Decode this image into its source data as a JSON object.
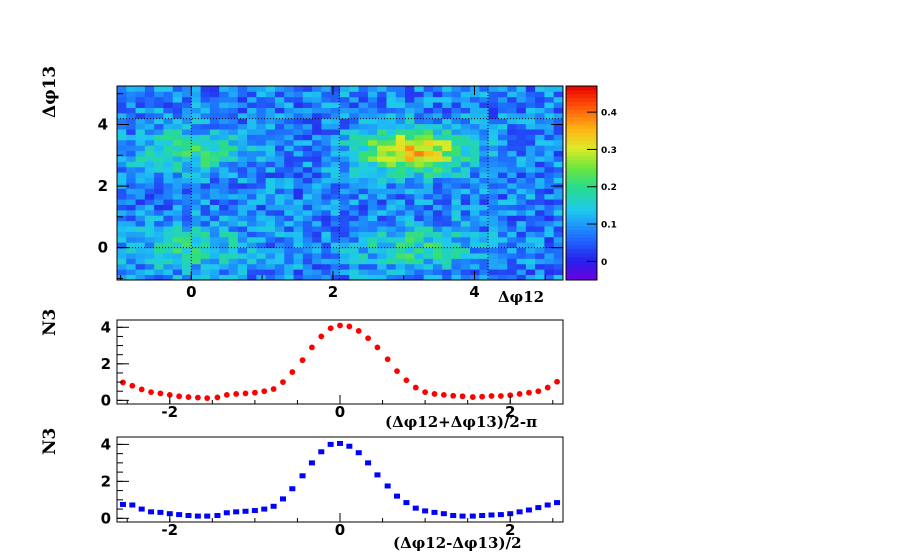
{
  "chart_data": [
    {
      "type": "heatmap",
      "xlabel": "Δφ12",
      "ylabel": "Δφ13",
      "xlim": [
        -1.05,
        5.25
      ],
      "ylim": [
        -1.05,
        5.25
      ],
      "x_ticks": [
        "0",
        "2",
        "4"
      ],
      "y_ticks": [
        "0",
        "2",
        "4"
      ],
      "zlim": [
        -0.05,
        0.47
      ],
      "z_ticks": [
        "0",
        "0.1",
        "0.2",
        "0.3",
        "0.4"
      ],
      "bins": [
        48,
        36
      ],
      "peaks": [
        {
          "x": 0,
          "y": 0,
          "z": 0.18
        },
        {
          "x": 0,
          "y": 3.14,
          "z": 0.2
        },
        {
          "x": 3.14,
          "y": 0,
          "z": 0.19
        },
        {
          "x": 3.14,
          "y": 3.14,
          "z": 0.34
        }
      ],
      "background_z": 0.08,
      "dotted_lines": {
        "x": [
          0,
          2.09,
          4.19
        ],
        "y": [
          0,
          4.19
        ]
      },
      "grid": false
    },
    {
      "type": "scatter",
      "xlabel": "(Δφ12+Δφ13)/2-π",
      "ylabel": "N3",
      "xlim": [
        -2.62,
        2.62
      ],
      "ylim": [
        -0.2,
        4.4
      ],
      "x_ticks": [
        "-2",
        "0",
        "2"
      ],
      "y_ticks": [
        "0",
        "2",
        "4"
      ],
      "color": "#ff0000",
      "marker": "circle",
      "x": [
        -2.55,
        -2.44,
        -2.33,
        -2.22,
        -2.11,
        -2.0,
        -1.89,
        -1.78,
        -1.67,
        -1.56,
        -1.44,
        -1.33,
        -1.22,
        -1.11,
        -1.0,
        -0.89,
        -0.78,
        -0.67,
        -0.56,
        -0.44,
        -0.33,
        -0.22,
        -0.11,
        0.0,
        0.11,
        0.22,
        0.33,
        0.44,
        0.56,
        0.67,
        0.78,
        0.89,
        1.0,
        1.11,
        1.22,
        1.33,
        1.44,
        1.56,
        1.67,
        1.78,
        1.89,
        2.0,
        2.11,
        2.22,
        2.33,
        2.44,
        2.55
      ],
      "y": [
        0.98,
        0.8,
        0.6,
        0.45,
        0.38,
        0.3,
        0.22,
        0.18,
        0.15,
        0.12,
        0.16,
        0.3,
        0.35,
        0.38,
        0.42,
        0.5,
        0.62,
        1.0,
        1.55,
        2.2,
        2.9,
        3.5,
        3.95,
        4.1,
        4.05,
        3.8,
        3.4,
        2.9,
        2.25,
        1.6,
        1.1,
        0.7,
        0.45,
        0.35,
        0.3,
        0.25,
        0.22,
        0.18,
        0.2,
        0.24,
        0.24,
        0.28,
        0.35,
        0.42,
        0.5,
        0.7,
        1.02
      ]
    },
    {
      "type": "scatter",
      "xlabel": "(Δφ12-Δφ13)/2",
      "ylabel": "N3",
      "xlim": [
        -2.62,
        2.62
      ],
      "ylim": [
        -0.2,
        4.4
      ],
      "x_ticks": [
        "-2",
        "0",
        "2"
      ],
      "y_ticks": [
        "0",
        "2",
        "4"
      ],
      "color": "#0000ff",
      "marker": "square",
      "x": [
        -2.55,
        -2.44,
        -2.33,
        -2.22,
        -2.11,
        -2.0,
        -1.89,
        -1.78,
        -1.67,
        -1.56,
        -1.44,
        -1.33,
        -1.22,
        -1.11,
        -1.0,
        -0.89,
        -0.78,
        -0.67,
        -0.56,
        -0.44,
        -0.33,
        -0.22,
        -0.11,
        0.0,
        0.11,
        0.22,
        0.33,
        0.44,
        0.56,
        0.67,
        0.78,
        0.89,
        1.0,
        1.11,
        1.22,
        1.33,
        1.44,
        1.56,
        1.67,
        1.78,
        1.89,
        2.0,
        2.11,
        2.22,
        2.33,
        2.44,
        2.55
      ],
      "y": [
        0.75,
        0.72,
        0.5,
        0.35,
        0.32,
        0.25,
        0.2,
        0.15,
        0.12,
        0.12,
        0.15,
        0.3,
        0.35,
        0.38,
        0.42,
        0.5,
        0.65,
        1.05,
        1.6,
        2.3,
        3.0,
        3.6,
        4.0,
        4.05,
        3.9,
        3.55,
        3.0,
        2.35,
        1.75,
        1.2,
        0.85,
        0.55,
        0.4,
        0.32,
        0.25,
        0.15,
        0.12,
        0.12,
        0.15,
        0.18,
        0.2,
        0.25,
        0.35,
        0.45,
        0.58,
        0.72,
        0.85
      ]
    }
  ]
}
